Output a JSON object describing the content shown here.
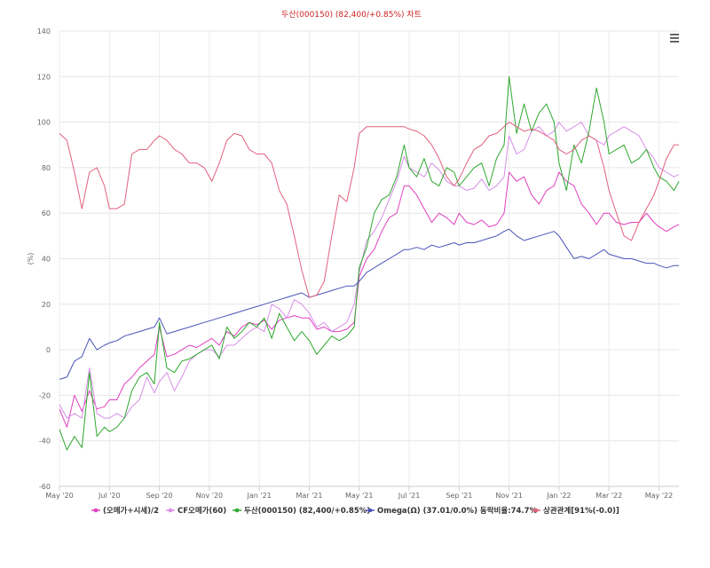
{
  "chart_data": {
    "type": "line",
    "title": "두산(000150) (82,400/+0.85%) 차트",
    "ylabel": "(%)",
    "xlabel": "",
    "ylim": [
      -60,
      140
    ],
    "yticks": [
      "140",
      "120",
      "100",
      "80",
      "60",
      "40",
      "20",
      "0",
      "-20",
      "-40",
      "-60"
    ],
    "xlim": [
      0,
      24.8
    ],
    "xticks": [
      {
        "label": "May '20",
        "x": 0
      },
      {
        "label": "Jul '20",
        "x": 2
      },
      {
        "label": "Sep '20",
        "x": 4
      },
      {
        "label": "Nov '20",
        "x": 6
      },
      {
        "label": "Jan '21",
        "x": 8
      },
      {
        "label": "Mar '21",
        "x": 10
      },
      {
        "label": "May '21",
        "x": 12
      },
      {
        "label": "Jul '21",
        "x": 14
      },
      {
        "label": "Sep '21",
        "x": 16
      },
      {
        "label": "Nov '21",
        "x": 18
      },
      {
        "label": "Jan '22",
        "x": 20
      },
      {
        "label": "Mar '22",
        "x": 22
      },
      {
        "label": "May '22",
        "x": 24
      }
    ],
    "legend_position": "bottom",
    "series": [
      {
        "name": "(오메가+시세)/2",
        "color": "#e040c0",
        "x": [
          0,
          0.3,
          0.6,
          0.9,
          1.2,
          1.5,
          1.8,
          2.0,
          2.3,
          2.6,
          2.9,
          3.2,
          3.5,
          3.8,
          4.0,
          4.3,
          4.6,
          4.9,
          5.2,
          5.5,
          5.8,
          6.1,
          6.4,
          6.7,
          7.0,
          7.3,
          7.6,
          7.9,
          8.2,
          8.5,
          8.8,
          9.1,
          9.4,
          9.7,
          10.0,
          10.3,
          10.6,
          10.9,
          11.2,
          11.5,
          11.8,
          12.0,
          12.3,
          12.6,
          12.9,
          13.2,
          13.5,
          13.8,
          14.0,
          14.3,
          14.6,
          14.9,
          15.2,
          15.5,
          15.8,
          16.0,
          16.3,
          16.6,
          16.9,
          17.2,
          17.5,
          17.8,
          18.0,
          18.3,
          18.6,
          18.9,
          19.2,
          19.5,
          19.8,
          20.0,
          20.3,
          20.6,
          20.9,
          21.2,
          21.5,
          21.8,
          22.0,
          22.3,
          22.6,
          22.9,
          23.2,
          23.5,
          23.8,
          24.0,
          24.3,
          24.6,
          24.8
        ],
        "y": [
          -26,
          -34,
          -20,
          -27,
          -18,
          -26,
          -25,
          -22,
          -22,
          -15,
          -12,
          -8,
          -5,
          -2,
          10,
          -3,
          -2,
          0,
          2,
          1,
          3,
          5,
          2,
          8,
          6,
          10,
          12,
          11,
          13,
          9,
          13,
          14,
          15,
          14,
          14,
          9,
          10,
          8,
          8,
          9,
          12,
          32,
          40,
          44,
          52,
          58,
          60,
          72,
          72,
          68,
          62,
          56,
          60,
          58,
          55,
          60,
          56,
          55,
          57,
          54,
          55,
          60,
          78,
          74,
          76,
          68,
          64,
          70,
          72,
          78,
          74,
          72,
          64,
          60,
          55,
          60,
          60,
          56,
          55,
          56,
          56,
          60,
          56,
          54,
          52,
          54,
          55
        ]
      },
      {
        "name": "CF오메가(60)",
        "color": "#d88ee8",
        "x": [
          0,
          0.3,
          0.6,
          0.9,
          1.2,
          1.5,
          1.8,
          2.0,
          2.3,
          2.6,
          2.9,
          3.2,
          3.5,
          3.8,
          4.0,
          4.3,
          4.6,
          4.9,
          5.2,
          5.5,
          5.8,
          6.1,
          6.4,
          6.7,
          7.0,
          7.3,
          7.6,
          7.9,
          8.2,
          8.5,
          8.8,
          9.1,
          9.4,
          9.7,
          10.0,
          10.3,
          10.6,
          10.9,
          11.2,
          11.5,
          11.8,
          12.0,
          12.3,
          12.6,
          12.9,
          13.2,
          13.5,
          13.8,
          14.0,
          14.3,
          14.6,
          14.9,
          15.2,
          15.5,
          15.8,
          16.0,
          16.3,
          16.6,
          16.9,
          17.2,
          17.5,
          17.8,
          18.0,
          18.3,
          18.6,
          18.9,
          19.2,
          19.5,
          19.8,
          20.0,
          20.3,
          20.6,
          20.9,
          21.2,
          21.5,
          21.8,
          22.0,
          22.3,
          22.6,
          22.9,
          23.2,
          23.5,
          23.8,
          24.0,
          24.3,
          24.6,
          24.8
        ],
        "y": [
          -24,
          -30,
          -28,
          -30,
          -8,
          -28,
          -30,
          -30,
          -28,
          -30,
          -25,
          -22,
          -12,
          -19,
          -14,
          -10,
          -18,
          -12,
          -5,
          -2,
          0,
          0,
          -3,
          2,
          2,
          5,
          8,
          10,
          8,
          20,
          18,
          14,
          22,
          20,
          16,
          10,
          12,
          8,
          10,
          12,
          20,
          34,
          48,
          52,
          58,
          66,
          74,
          85,
          80,
          78,
          76,
          82,
          79,
          74,
          72,
          72,
          70,
          71,
          75,
          70,
          72,
          76,
          94,
          86,
          88,
          96,
          98,
          94,
          96,
          100,
          96,
          98,
          100,
          94,
          92,
          90,
          94,
          96,
          98,
          96,
          94,
          88,
          84,
          80,
          78,
          76,
          77
        ]
      },
      {
        "name": "두산(000150) (82,400/+0.85%)",
        "color": "#2ea82e",
        "x": [
          0,
          0.3,
          0.6,
          0.9,
          1.2,
          1.5,
          1.8,
          2.0,
          2.3,
          2.6,
          2.9,
          3.2,
          3.5,
          3.8,
          4.0,
          4.3,
          4.6,
          4.9,
          5.2,
          5.5,
          5.8,
          6.1,
          6.4,
          6.7,
          7.0,
          7.3,
          7.6,
          7.9,
          8.2,
          8.5,
          8.8,
          9.1,
          9.4,
          9.7,
          10.0,
          10.3,
          10.6,
          10.9,
          11.2,
          11.5,
          11.8,
          12.0,
          12.3,
          12.6,
          12.9,
          13.2,
          13.5,
          13.8,
          14.0,
          14.3,
          14.6,
          14.9,
          15.2,
          15.5,
          15.8,
          16.0,
          16.3,
          16.6,
          16.9,
          17.2,
          17.5,
          17.8,
          18.0,
          18.3,
          18.6,
          18.9,
          19.2,
          19.5,
          19.8,
          20.0,
          20.3,
          20.6,
          20.9,
          21.2,
          21.5,
          21.8,
          22.0,
          22.3,
          22.6,
          22.9,
          23.2,
          23.5,
          23.8,
          24.0,
          24.3,
          24.6,
          24.8
        ],
        "y": [
          -35,
          -44,
          -38,
          -43,
          -10,
          -38,
          -34,
          -36,
          -34,
          -30,
          -18,
          -12,
          -10,
          -15,
          12,
          -8,
          -10,
          -5,
          -4,
          -2,
          0,
          2,
          -4,
          10,
          5,
          8,
          12,
          10,
          14,
          5,
          16,
          10,
          4,
          8,
          4,
          -2,
          2,
          6,
          4,
          6,
          10,
          36,
          45,
          60,
          66,
          68,
          76,
          90,
          80,
          76,
          84,
          74,
          72,
          80,
          78,
          72,
          76,
          80,
          82,
          72,
          84,
          90,
          120,
          95,
          108,
          96,
          104,
          108,
          100,
          82,
          70,
          90,
          82,
          96,
          115,
          100,
          86,
          88,
          90,
          82,
          84,
          88,
          80,
          76,
          74,
          70,
          74
        ]
      },
      {
        "name": "Omega(Ω) (37.01/0.0%) 동락비율:74.7%",
        "color": "#4a55b8",
        "x": [
          0,
          0.3,
          0.6,
          0.9,
          1.2,
          1.5,
          1.8,
          2.0,
          2.3,
          2.6,
          2.9,
          3.2,
          3.5,
          3.8,
          4.0,
          4.3,
          4.6,
          4.9,
          5.2,
          5.5,
          5.8,
          6.1,
          6.4,
          6.7,
          7.0,
          7.3,
          7.6,
          7.9,
          8.2,
          8.5,
          8.8,
          9.1,
          9.4,
          9.7,
          10.0,
          10.3,
          10.6,
          10.9,
          11.2,
          11.5,
          11.8,
          12.0,
          12.3,
          12.6,
          12.9,
          13.2,
          13.5,
          13.8,
          14.0,
          14.3,
          14.6,
          14.9,
          15.2,
          15.5,
          15.8,
          16.0,
          16.3,
          16.6,
          16.9,
          17.2,
          17.5,
          17.8,
          18.0,
          18.3,
          18.6,
          18.9,
          19.2,
          19.5,
          19.8,
          20.0,
          20.3,
          20.6,
          20.9,
          21.2,
          21.5,
          21.8,
          22.0,
          22.3,
          22.6,
          22.9,
          23.2,
          23.5,
          23.8,
          24.0,
          24.3,
          24.6,
          24.8
        ],
        "y": [
          -13,
          -12,
          -5,
          -3,
          5,
          0,
          2,
          3,
          4,
          6,
          7,
          8,
          9,
          10,
          14,
          7,
          8,
          9,
          10,
          11,
          12,
          13,
          14,
          15,
          16,
          17,
          18,
          19,
          20,
          21,
          22,
          23,
          24,
          25,
          23,
          24,
          25,
          26,
          27,
          28,
          28,
          30,
          34,
          36,
          38,
          40,
          42,
          44,
          44,
          45,
          44,
          46,
          45,
          46,
          47,
          46,
          47,
          47,
          48,
          49,
          50,
          52,
          53,
          50,
          48,
          49,
          50,
          51,
          52,
          50,
          45,
          40,
          41,
          40,
          42,
          44,
          42,
          41,
          40,
          40,
          39,
          38,
          38,
          37,
          36,
          37,
          37
        ]
      },
      {
        "name": "상관관계[91%(-0.0)]",
        "color": "#e0607e",
        "x": [
          0,
          0.3,
          0.6,
          0.9,
          1.2,
          1.5,
          1.8,
          2.0,
          2.3,
          2.6,
          2.9,
          3.2,
          3.5,
          3.8,
          4.0,
          4.3,
          4.6,
          4.9,
          5.2,
          5.5,
          5.8,
          6.1,
          6.4,
          6.7,
          7.0,
          7.3,
          7.6,
          7.9,
          8.2,
          8.5,
          8.8,
          9.1,
          9.4,
          9.7,
          10.0,
          10.3,
          10.6,
          10.9,
          11.2,
          11.5,
          11.8,
          12.0,
          12.3,
          12.6,
          12.9,
          13.2,
          13.5,
          13.8,
          14.0,
          14.3,
          14.6,
          14.9,
          15.2,
          15.5,
          15.8,
          16.0,
          16.3,
          16.6,
          16.9,
          17.2,
          17.5,
          17.8,
          18.0,
          18.3,
          18.6,
          18.9,
          19.2,
          19.5,
          19.8,
          20.0,
          20.3,
          20.6,
          20.9,
          21.2,
          21.5,
          21.8,
          22.0,
          22.3,
          22.6,
          22.9,
          23.2,
          23.5,
          23.8,
          24.0,
          24.3,
          24.6,
          24.8
        ],
        "y": [
          95,
          92,
          78,
          62,
          78,
          80,
          72,
          62,
          62,
          64,
          86,
          88,
          88,
          92,
          94,
          92,
          88,
          86,
          82,
          82,
          80,
          74,
          82,
          92,
          95,
          94,
          88,
          86,
          86,
          82,
          70,
          64,
          50,
          35,
          23,
          24,
          30,
          50,
          68,
          65,
          80,
          95,
          98,
          98,
          98,
          98,
          98,
          98,
          97,
          96,
          94,
          90,
          84,
          76,
          72,
          75,
          82,
          88,
          90,
          94,
          95,
          98,
          100,
          98,
          96,
          97,
          96,
          94,
          92,
          88,
          86,
          88,
          92,
          94,
          92,
          80,
          70,
          60,
          50,
          48,
          56,
          62,
          68,
          74,
          84,
          90,
          90
        ]
      }
    ]
  }
}
